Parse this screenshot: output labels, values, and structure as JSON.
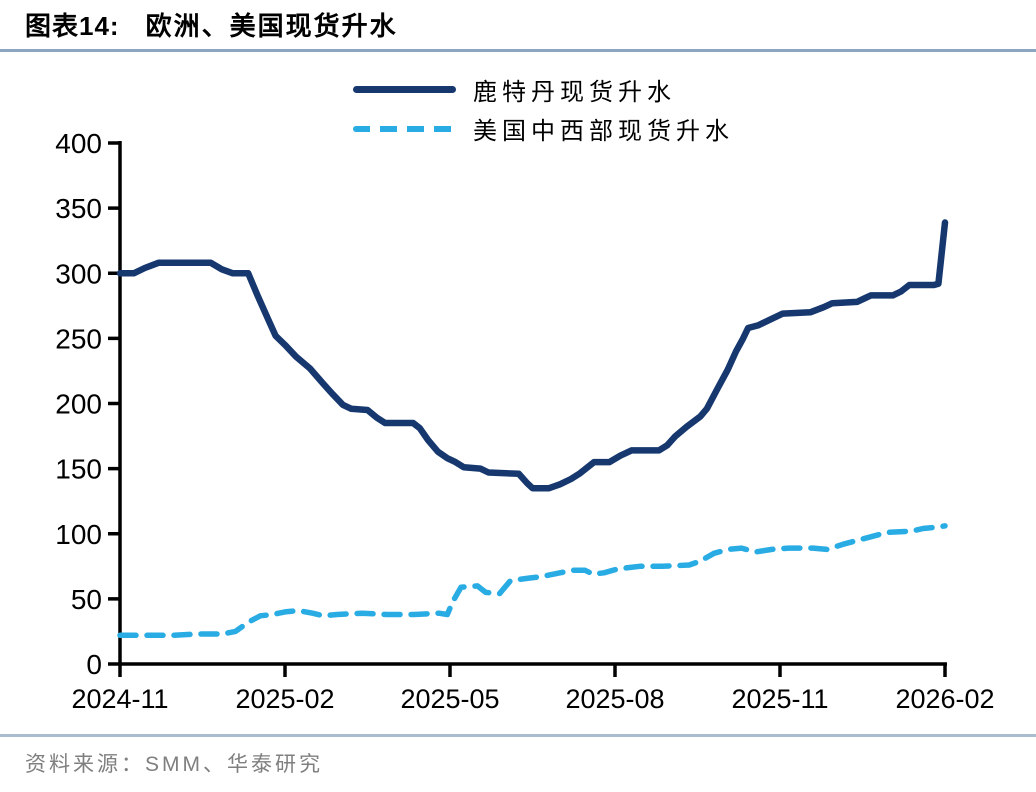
{
  "header": {
    "figure_label": "图表14:",
    "title": "欧洲、美国现货升水"
  },
  "footer": {
    "source": "资料来源：SMM、华泰研究"
  },
  "colors": {
    "rotterdam_line": "#16386F",
    "us_midwest_line": "#29ACE4",
    "title_rule": "#8CA6BF",
    "footer_rule": "#A9BDCE",
    "axis": "#000000",
    "source_text": "#7F7F7F"
  },
  "chart_data": {
    "type": "line",
    "title": "",
    "xlabel": "",
    "ylabel": "",
    "grid": false,
    "legend_position": "top-center",
    "x_axis": {
      "unit": "months_since_2024_11",
      "tick_months": [
        0,
        3,
        6,
        9,
        12,
        15
      ],
      "tick_labels": [
        "2024-11",
        "2025-02",
        "2025-05",
        "2025-08",
        "2025-11",
        "2026-02"
      ],
      "range_months": [
        0,
        15
      ]
    },
    "y_axis": {
      "ticks": [
        0,
        50,
        100,
        150,
        200,
        250,
        300,
        350,
        400
      ],
      "range": [
        0,
        400
      ]
    },
    "series": [
      {
        "name": "鹿特丹现货升水",
        "style": "solid",
        "color": "#16386F",
        "points": [
          [
            0,
            300
          ],
          [
            0.25,
            300
          ],
          [
            0.45,
            304
          ],
          [
            0.7,
            308
          ],
          [
            1.0,
            308
          ],
          [
            1.35,
            308
          ],
          [
            1.65,
            308
          ],
          [
            1.85,
            303
          ],
          [
            2.05,
            300
          ],
          [
            2.33,
            300
          ],
          [
            2.5,
            283
          ],
          [
            2.7,
            264
          ],
          [
            2.83,
            252
          ],
          [
            3.0,
            245
          ],
          [
            3.2,
            236
          ],
          [
            3.45,
            227
          ],
          [
            3.7,
            215
          ],
          [
            3.87,
            207
          ],
          [
            4.05,
            199
          ],
          [
            4.2,
            196
          ],
          [
            4.5,
            195
          ],
          [
            4.67,
            189
          ],
          [
            4.82,
            185
          ],
          [
            5.33,
            185
          ],
          [
            5.45,
            181
          ],
          [
            5.6,
            172
          ],
          [
            5.78,
            163
          ],
          [
            5.95,
            158
          ],
          [
            6.1,
            155
          ],
          [
            6.25,
            151
          ],
          [
            6.55,
            150
          ],
          [
            6.7,
            147
          ],
          [
            7.25,
            146
          ],
          [
            7.4,
            139
          ],
          [
            7.5,
            135
          ],
          [
            7.8,
            135
          ],
          [
            8.0,
            138
          ],
          [
            8.2,
            142
          ],
          [
            8.35,
            146
          ],
          [
            8.5,
            151
          ],
          [
            8.62,
            155
          ],
          [
            8.9,
            155
          ],
          [
            9.1,
            160
          ],
          [
            9.3,
            164
          ],
          [
            9.8,
            164
          ],
          [
            9.95,
            168
          ],
          [
            10.1,
            175
          ],
          [
            10.3,
            182
          ],
          [
            10.55,
            190
          ],
          [
            10.67,
            196
          ],
          [
            10.87,
            212
          ],
          [
            11.05,
            226
          ],
          [
            11.2,
            240
          ],
          [
            11.33,
            250
          ],
          [
            11.42,
            258
          ],
          [
            11.6,
            260
          ],
          [
            11.85,
            265
          ],
          [
            12.05,
            269
          ],
          [
            12.55,
            270
          ],
          [
            12.8,
            274
          ],
          [
            12.95,
            277
          ],
          [
            13.4,
            278
          ],
          [
            13.55,
            281
          ],
          [
            13.65,
            283
          ],
          [
            14.05,
            283
          ],
          [
            14.2,
            286
          ],
          [
            14.35,
            291
          ],
          [
            14.8,
            291
          ],
          [
            14.88,
            292
          ],
          [
            15.0,
            339
          ]
        ]
      },
      {
        "name": "美国中西部现货升水",
        "style": "dashed",
        "color": "#29ACE4",
        "points": [
          [
            0,
            22
          ],
          [
            0.5,
            22
          ],
          [
            0.95,
            22
          ],
          [
            1.4,
            23
          ],
          [
            1.87,
            23
          ],
          [
            2.1,
            25
          ],
          [
            2.33,
            32
          ],
          [
            2.55,
            37
          ],
          [
            2.78,
            38
          ],
          [
            3.0,
            40
          ],
          [
            3.25,
            41
          ],
          [
            3.5,
            39
          ],
          [
            3.7,
            37
          ],
          [
            3.95,
            38
          ],
          [
            4.4,
            39
          ],
          [
            4.85,
            38
          ],
          [
            5.35,
            38
          ],
          [
            5.8,
            39
          ],
          [
            5.95,
            38
          ],
          [
            6.05,
            48
          ],
          [
            6.2,
            59
          ],
          [
            6.5,
            60
          ],
          [
            6.65,
            55
          ],
          [
            6.9,
            54
          ],
          [
            7.1,
            64
          ],
          [
            7.45,
            66
          ],
          [
            7.65,
            67
          ],
          [
            8.0,
            70
          ],
          [
            8.25,
            72
          ],
          [
            8.45,
            72
          ],
          [
            8.6,
            69
          ],
          [
            8.8,
            70
          ],
          [
            9.05,
            73
          ],
          [
            9.45,
            75
          ],
          [
            9.85,
            75
          ],
          [
            10.35,
            76
          ],
          [
            10.55,
            79
          ],
          [
            10.8,
            85
          ],
          [
            11.05,
            88
          ],
          [
            11.3,
            89
          ],
          [
            11.55,
            86
          ],
          [
            11.85,
            88
          ],
          [
            12.15,
            89
          ],
          [
            12.6,
            89
          ],
          [
            12.85,
            88
          ],
          [
            13.15,
            92
          ],
          [
            13.5,
            96
          ],
          [
            13.95,
            101
          ],
          [
            14.4,
            102
          ],
          [
            14.6,
            104
          ],
          [
            14.85,
            105
          ],
          [
            15.0,
            106
          ]
        ]
      }
    ]
  }
}
